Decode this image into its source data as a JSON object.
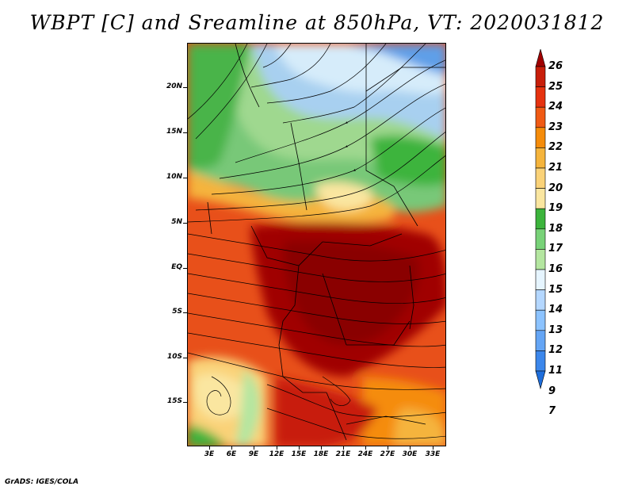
{
  "title": "WBPT [C] and Sreamline at 850hPa, VT: 2020031812",
  "credit": "GrADS: IGES/COLA",
  "map": {
    "lat_labels": [
      "20N",
      "15N",
      "10N",
      "5N",
      "EQ",
      "5S",
      "10S",
      "15S"
    ],
    "lon_labels": [
      "3E",
      "6E",
      "9E",
      "12E",
      "15E",
      "18E",
      "21E",
      "24E",
      "27E",
      "30E",
      "33E"
    ]
  },
  "colorbar": {
    "labels": [
      "26",
      "25",
      "24",
      "23",
      "22",
      "21",
      "20",
      "19",
      "18",
      "17",
      "16",
      "15",
      "14",
      "13",
      "12",
      "11",
      "9",
      "7"
    ],
    "colors": [
      "#a00000",
      "#c81e0a",
      "#e6320f",
      "#f05a14",
      "#f58c0a",
      "#f5b43c",
      "#fad278",
      "#fae6a0",
      "#3cb43c",
      "#78d278",
      "#b4e6a0",
      "#e6f5ff",
      "#b4d7ff",
      "#8cc3ff",
      "#64a5f5",
      "#3c87eb",
      "#1e6edc"
    ]
  },
  "legend": {
    "field": "WBPT [C]",
    "overlay": "Streamline",
    "level": "850hPa",
    "valid_time": "2020031812"
  }
}
